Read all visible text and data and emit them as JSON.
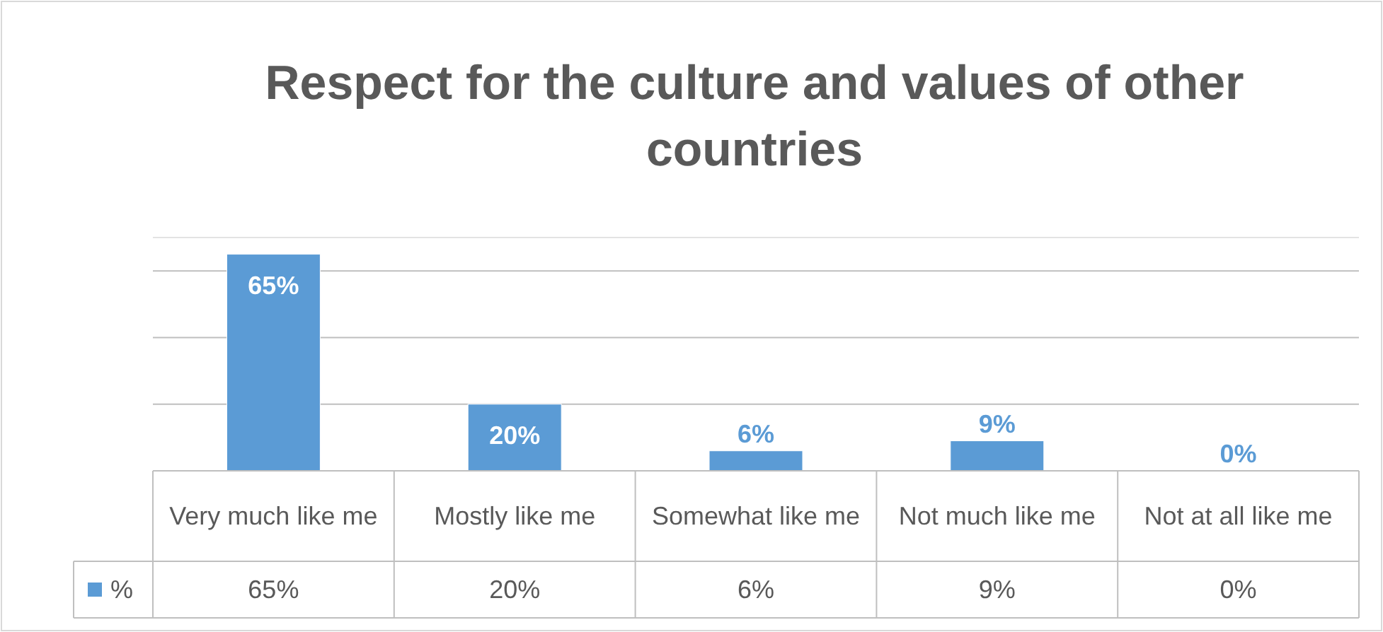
{
  "chart_data": {
    "type": "bar",
    "title": "Respect for the culture and values of other countries",
    "categories": [
      "Very much like me",
      "Mostly like me",
      "Somewhat like me",
      "Not much like me",
      "Not at all like me"
    ],
    "series": [
      {
        "name": "%",
        "color": "#5b9bd5",
        "values": [
          65,
          20,
          6,
          9,
          0
        ],
        "value_labels": [
          "65%",
          "20%",
          "6%",
          "9%",
          "0%"
        ]
      }
    ],
    "ylim": [
      0,
      70
    ],
    "yticks": [
      {
        "value": 0,
        "label": null
      },
      {
        "value": 20,
        "label": null
      },
      {
        "value": 40,
        "label": null
      },
      {
        "value": 60,
        "label": null
      }
    ],
    "grid": "y",
    "tick_labels": "x",
    "legend": "bottom left"
  }
}
